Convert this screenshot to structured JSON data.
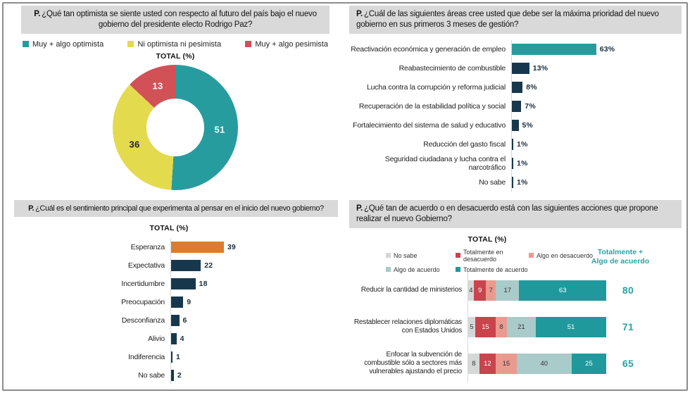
{
  "ui": {
    "question_prefix": "P."
  },
  "chart_data": [
    {
      "id": "optimismo-donut",
      "type": "pie",
      "question": "¿Qué tan optimista se siente usted con respecto al futuro del país bajo el nuevo gobierno del presidente electo Rodrigo Paz?",
      "title": "TOTAL (%)",
      "labels": [
        "Muy + algo optimista",
        "Ni optimista ni pesimista",
        "Muy + algo pesimista"
      ],
      "values": [
        51,
        36,
        13
      ],
      "colors": [
        "#279c9e",
        "#e4da4e",
        "#d15157"
      ],
      "value_text_colors": [
        "#ffffff",
        "#222222",
        "#ffffff"
      ],
      "layout_hint": "donut, clockwise from top"
    },
    {
      "id": "prioridades-bar",
      "type": "bar",
      "question": "¿Cuál de las siguientes áreas cree usted que debe ser la máxima prioridad del nuevo gobierno en sus primeros 3 meses de gestión?",
      "categories": [
        "Reactivación económica y generación de empleo",
        "Reabastecimiento de combustible",
        "Lucha contra la corrupción y reforma judicial",
        "Recuperación de la estabilidad política y social",
        "Fortalecimiento del sistema de salud y educativo",
        "Reducción del gasto fiscal",
        "Seguridad ciudadana y lucha contra el narcotráfico",
        "No sabe"
      ],
      "values": [
        63,
        13,
        8,
        7,
        5,
        1,
        1,
        1
      ],
      "value_suffix": "%",
      "bar_colors": [
        "#279c9e",
        "#17384c",
        "#17384c",
        "#17384c",
        "#17384c",
        "#17384c",
        "#17384c",
        "#17384c"
      ],
      "layout_hint": "horizontal bars, no axis labels"
    },
    {
      "id": "sentimiento-bar",
      "type": "bar",
      "question": "¿Cuál es el sentimiento principal que experimenta al pensar en el inicio del nuevo gobierno?",
      "title": "TOTAL (%)",
      "categories": [
        "Esperanza",
        "Expectativa",
        "Incertidumbre",
        "Preocupación",
        "Desconfianza",
        "Alivio",
        "Indiferencia",
        "No sabe"
      ],
      "values": [
        39,
        22,
        18,
        9,
        6,
        4,
        1,
        2
      ],
      "value_suffix": "",
      "bar_colors": [
        "#dc7c2e",
        "#17384c",
        "#17384c",
        "#17384c",
        "#17384c",
        "#17384c",
        "#17384c",
        "#17384c"
      ],
      "layout_hint": "horizontal bars, no axis labels"
    },
    {
      "id": "acuerdo-stacked",
      "type": "bar",
      "subtype": "stacked-horizontal",
      "question": "¿Qué tan de acuerdo o en desacuerdo está con las siguientes acciones que propone realizar el nuevo Gobierno?",
      "title": "TOTAL (%)",
      "summary_header": "Totalmente + Algo de acuerdo",
      "legend": [
        {
          "label": "No sabe",
          "color": "#d7d7d7",
          "text_color": "#333333"
        },
        {
          "label": "Totalmente en desacuerdo",
          "color": "#c9444c",
          "text_color": "#ffffff"
        },
        {
          "label": "Algo en desacuerdo",
          "color": "#ea9a8f",
          "text_color": "#333333"
        },
        {
          "label": "Algo de acuerdo",
          "color": "#a9cbc9",
          "text_color": "#333333"
        },
        {
          "label": "Totalmente de acuerdo",
          "color": "#1f999c",
          "text_color": "#ffffff"
        }
      ],
      "categories": [
        "Reducir la cantidad de ministerios",
        "Restablecer relaciones diplomáticas con Estados Unidos",
        "Enfocar la subvención de combustible sólo a sectores más vulnerables ajustando el precio"
      ],
      "series": [
        {
          "name": "No sabe",
          "values": [
            4,
            5,
            8
          ]
        },
        {
          "name": "Totalmente en desacuerdo",
          "values": [
            9,
            15,
            12
          ]
        },
        {
          "name": "Algo en desacuerdo",
          "values": [
            7,
            8,
            15
          ]
        },
        {
          "name": "Algo de acuerdo",
          "values": [
            17,
            21,
            40
          ]
        },
        {
          "name": "Totalmente de acuerdo",
          "values": [
            63,
            51,
            25
          ]
        }
      ],
      "totals": [
        80,
        71,
        65
      ],
      "xlim": [
        0,
        100
      ],
      "layout_hint": "stacked 100% horizontal bars, legend top, totals column right"
    }
  ]
}
